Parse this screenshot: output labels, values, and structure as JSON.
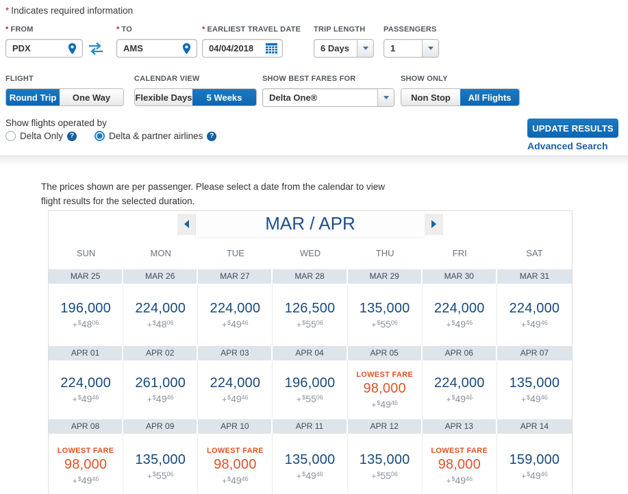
{
  "misc": {
    "asterisk": "*",
    "help_glyph": "?"
  },
  "header_note": "Indicates required information",
  "search_form": {
    "from": {
      "label": "FROM",
      "value": "PDX"
    },
    "to": {
      "label": "TO",
      "value": "AMS"
    },
    "date": {
      "label": "EARLIEST TRAVEL DATE",
      "value": "04/04/2018"
    },
    "trip_length": {
      "label": "TRIP LENGTH",
      "value": "6 Days"
    },
    "passengers": {
      "label": "PASSENGERS",
      "value": "1"
    },
    "flight": {
      "label": "FLIGHT",
      "option1": "Round Trip",
      "option2": "One Way",
      "selected": "Round Trip"
    },
    "calendar_view": {
      "label": "CALENDAR VIEW",
      "option1": "Flexible Days",
      "option2": "5 Weeks",
      "selected": "5 Weeks"
    },
    "best_fares": {
      "label": "SHOW BEST FARES FOR",
      "value": "Delta One®"
    },
    "show_only": {
      "label": "SHOW ONLY",
      "option1": "Non Stop",
      "option2": "All Flights",
      "selected": "All Flights"
    },
    "operated_by": {
      "label": "Show flights operated by",
      "option1": "Delta Only",
      "option2": "Delta & partner airlines",
      "selected": "Delta & partner airlines"
    },
    "update_button": "UPDATE RESULTS",
    "advanced_search": "Advanced Search"
  },
  "results_note": "The prices shown are per passenger. Please select a date from the calendar to view flight results for the selected duration.",
  "calendar": {
    "title": "MAR / APR",
    "plus": "+",
    "currency": "$",
    "lowest_fare_label": "LOWEST FARE",
    "day_headers": [
      "SUN",
      "MON",
      "TUE",
      "WED",
      "THU",
      "FRI",
      "SAT"
    ],
    "weeks": [
      {
        "days": [
          {
            "date": "MAR 25",
            "miles": "196,000",
            "tax_dollars": "48",
            "tax_cents": "06",
            "lowest": false
          },
          {
            "date": "MAR 26",
            "miles": "224,000",
            "tax_dollars": "48",
            "tax_cents": "06",
            "lowest": false
          },
          {
            "date": "MAR 27",
            "miles": "224,000",
            "tax_dollars": "49",
            "tax_cents": "46",
            "lowest": false
          },
          {
            "date": "MAR 28",
            "miles": "126,500",
            "tax_dollars": "55",
            "tax_cents": "06",
            "lowest": false
          },
          {
            "date": "MAR 29",
            "miles": "135,000",
            "tax_dollars": "55",
            "tax_cents": "06",
            "lowest": false
          },
          {
            "date": "MAR 30",
            "miles": "224,000",
            "tax_dollars": "49",
            "tax_cents": "46",
            "lowest": false
          },
          {
            "date": "MAR 31",
            "miles": "224,000",
            "tax_dollars": "49",
            "tax_cents": "46",
            "lowest": false
          }
        ]
      },
      {
        "days": [
          {
            "date": "APR 01",
            "miles": "224,000",
            "tax_dollars": "49",
            "tax_cents": "46",
            "lowest": false
          },
          {
            "date": "APR 02",
            "miles": "261,000",
            "tax_dollars": "49",
            "tax_cents": "46",
            "lowest": false
          },
          {
            "date": "APR 03",
            "miles": "224,000",
            "tax_dollars": "49",
            "tax_cents": "46",
            "lowest": false
          },
          {
            "date": "APR 04",
            "miles": "196,000",
            "tax_dollars": "55",
            "tax_cents": "06",
            "lowest": false
          },
          {
            "date": "APR 05",
            "miles": "98,000",
            "tax_dollars": "49",
            "tax_cents": "46",
            "lowest": true
          },
          {
            "date": "APR 06",
            "miles": "224,000",
            "tax_dollars": "49",
            "tax_cents": "46",
            "lowest": false
          },
          {
            "date": "APR 07",
            "miles": "135,000",
            "tax_dollars": "49",
            "tax_cents": "46",
            "lowest": false
          }
        ]
      },
      {
        "days": [
          {
            "date": "APR 08",
            "miles": "98,000",
            "tax_dollars": "49",
            "tax_cents": "46",
            "lowest": true
          },
          {
            "date": "APR 09",
            "miles": "135,000",
            "tax_dollars": "55",
            "tax_cents": "06",
            "lowest": false
          },
          {
            "date": "APR 10",
            "miles": "98,000",
            "tax_dollars": "49",
            "tax_cents": "46",
            "lowest": true
          },
          {
            "date": "APR 11",
            "miles": "135,000",
            "tax_dollars": "49",
            "tax_cents": "46",
            "lowest": false
          },
          {
            "date": "APR 12",
            "miles": "135,000",
            "tax_dollars": "55",
            "tax_cents": "06",
            "lowest": false
          },
          {
            "date": "APR 13",
            "miles": "98,000",
            "tax_dollars": "49",
            "tax_cents": "46",
            "lowest": true
          },
          {
            "date": "APR 14",
            "miles": "159,000",
            "tax_dollars": "49",
            "tax_cents": "46",
            "lowest": false
          }
        ]
      }
    ]
  },
  "colors": {
    "primary_blue": "#1173bd",
    "navy_miles_text": "#17497c",
    "lowest_fare_orange": "#e05226",
    "date_strip_bg": "#dde4ea",
    "link_blue": "#1b5fa5",
    "required_red": "#c01933"
  }
}
